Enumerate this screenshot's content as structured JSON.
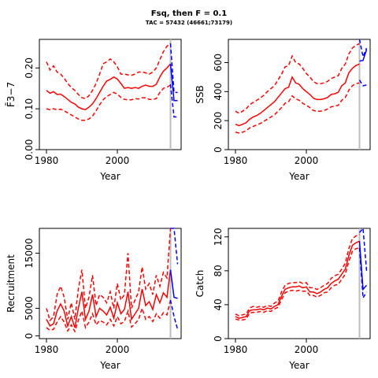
{
  "figure": {
    "title": "Fsq, then F = 0.1",
    "subtitle": "TAC = 57432 (46661;73179)"
  },
  "colors": {
    "history": "#ff0000",
    "projection": "#0000ff",
    "divider": "#bebebe",
    "axis": "#000000"
  },
  "chart_data": [
    {
      "type": "line",
      "panel": "F",
      "xlabel": "Year",
      "ylabel": "F̄3−7",
      "xlim": [
        1978,
        2018
      ],
      "ylim": [
        0.0,
        0.27
      ],
      "xticks": [
        1980,
        2000
      ],
      "yticks": [
        0.0,
        0.1,
        0.2
      ],
      "ytick_labels": [
        "0.00",
        "0.10",
        "0.20"
      ],
      "divider_year": 2015,
      "history": {
        "x": [
          1980,
          1981,
          1982,
          1983,
          1984,
          1985,
          1986,
          1987,
          1988,
          1989,
          1990,
          1991,
          1992,
          1993,
          1994,
          1995,
          1996,
          1997,
          1998,
          1999,
          2000,
          2001,
          2002,
          2003,
          2004,
          2005,
          2006,
          2007,
          2008,
          2009,
          2010,
          2011,
          2012,
          2013,
          2014,
          2015
        ],
        "median": [
          0.145,
          0.138,
          0.142,
          0.135,
          0.136,
          0.13,
          0.123,
          0.116,
          0.112,
          0.104,
          0.1,
          0.098,
          0.104,
          0.112,
          0.125,
          0.14,
          0.155,
          0.168,
          0.172,
          0.178,
          0.173,
          0.162,
          0.15,
          0.152,
          0.15,
          0.152,
          0.15,
          0.155,
          0.158,
          0.155,
          0.155,
          0.16,
          0.178,
          0.192,
          0.2,
          0.21
        ],
        "upper": [
          0.215,
          0.195,
          0.205,
          0.19,
          0.185,
          0.175,
          0.162,
          0.152,
          0.145,
          0.135,
          0.127,
          0.125,
          0.132,
          0.145,
          0.162,
          0.185,
          0.21,
          0.215,
          0.222,
          0.215,
          0.203,
          0.185,
          0.185,
          0.183,
          0.182,
          0.185,
          0.19,
          0.19,
          0.188,
          0.185,
          0.19,
          0.2,
          0.22,
          0.24,
          0.253,
          0.26
        ],
        "lower": [
          0.1,
          0.098,
          0.1,
          0.098,
          0.099,
          0.095,
          0.09,
          0.085,
          0.08,
          0.075,
          0.072,
          0.072,
          0.075,
          0.082,
          0.095,
          0.11,
          0.122,
          0.13,
          0.135,
          0.14,
          0.136,
          0.128,
          0.123,
          0.122,
          0.122,
          0.125,
          0.124,
          0.127,
          0.127,
          0.123,
          0.123,
          0.125,
          0.14,
          0.15,
          0.153,
          0.158
        ]
      },
      "projection": {
        "x": [
          2015,
          2016,
          2017
        ],
        "median": [
          0.21,
          0.12,
          0.12
        ],
        "upper": [
          0.26,
          0.14,
          0.14
        ],
        "lower": [
          0.16,
          0.08,
          0.08
        ]
      }
    },
    {
      "type": "line",
      "panel": "SSB",
      "xlabel": "Year",
      "ylabel": "SSB",
      "xlim": [
        1978,
        2018
      ],
      "ylim": [
        0,
        760
      ],
      "xticks": [
        1980,
        2000
      ],
      "yticks": [
        0,
        200,
        400,
        600
      ],
      "ytick_labels": [
        "0",
        "200",
        "400",
        "600"
      ],
      "divider_year": 2015,
      "history": {
        "x": [
          1980,
          1981,
          1982,
          1983,
          1984,
          1985,
          1986,
          1987,
          1988,
          1989,
          1990,
          1991,
          1992,
          1993,
          1994,
          1995,
          1996,
          1997,
          1998,
          1999,
          2000,
          2001,
          2002,
          2003,
          2004,
          2005,
          2006,
          2007,
          2008,
          2009,
          2010,
          2011,
          2012,
          2013,
          2014,
          2015
        ],
        "median": [
          175,
          165,
          175,
          185,
          210,
          225,
          235,
          250,
          270,
          290,
          310,
          330,
          360,
          390,
          420,
          430,
          500,
          460,
          450,
          420,
          400,
          380,
          355,
          345,
          345,
          350,
          360,
          380,
          385,
          395,
          440,
          460,
          530,
          560,
          580,
          590
        ],
        "upper": [
          265,
          250,
          265,
          280,
          310,
          325,
          340,
          355,
          375,
          400,
          420,
          440,
          480,
          520,
          570,
          580,
          645,
          600,
          590,
          560,
          525,
          500,
          470,
          455,
          455,
          460,
          470,
          490,
          500,
          510,
          560,
          590,
          660,
          700,
          720,
          730
        ],
        "lower": [
          120,
          115,
          120,
          130,
          150,
          160,
          170,
          180,
          195,
          210,
          225,
          240,
          265,
          290,
          320,
          330,
          370,
          350,
          340,
          320,
          305,
          290,
          270,
          265,
          265,
          270,
          280,
          295,
          300,
          305,
          340,
          360,
          410,
          440,
          455,
          460
        ]
      },
      "projection": {
        "x": [
          2015,
          2016,
          2017
        ],
        "median": [
          610,
          615,
          690
        ],
        "upper": [
          760,
          640,
          700
        ],
        "lower": [
          480,
          440,
          445
        ]
      }
    },
    {
      "type": "line",
      "panel": "Recruitment",
      "xlabel": "Year",
      "ylabel": "Recruitment",
      "xlim": [
        1978,
        2018
      ],
      "ylim": [
        -500,
        19500
      ],
      "xticks": [
        1980,
        2000
      ],
      "yticks": [
        0,
        5000,
        15000
      ],
      "ytick_labels": [
        "0",
        "5000",
        "15000"
      ],
      "divider_year": 2015,
      "history": {
        "x": [
          1980,
          1981,
          1982,
          1983,
          1984,
          1985,
          1986,
          1987,
          1988,
          1989,
          1990,
          1991,
          1992,
          1993,
          1994,
          1995,
          1996,
          1997,
          1998,
          1999,
          2000,
          2001,
          2002,
          2003,
          2004,
          2005,
          2006,
          2007,
          2008,
          2009,
          2010,
          2011,
          2012,
          2013,
          2014,
          2015
        ],
        "median": [
          3000,
          1800,
          2200,
          4500,
          5800,
          4500,
          1800,
          3500,
          1500,
          5000,
          8000,
          3000,
          4500,
          7500,
          3500,
          5000,
          4500,
          3800,
          5200,
          3200,
          6000,
          4000,
          4800,
          8000,
          3000,
          4000,
          5000,
          8500,
          5500,
          6200,
          4800,
          7500,
          6000,
          7800,
          7000,
          12000
        ],
        "upper": [
          5000,
          2800,
          3500,
          7500,
          9000,
          7000,
          3000,
          6000,
          3000,
          8500,
          12000,
          5000,
          7000,
          11000,
          5500,
          7500,
          7000,
          6000,
          8000,
          5000,
          9500,
          6500,
          7500,
          15000,
          5000,
          6500,
          8000,
          12500,
          8500,
          9500,
          7500,
          11000,
          9000,
          11500,
          10500,
          19500
        ],
        "lower": [
          1500,
          1000,
          1200,
          2500,
          3500,
          2500,
          900,
          2000,
          800,
          2800,
          4500,
          1500,
          2500,
          4000,
          2000,
          2800,
          2500,
          2000,
          3000,
          1800,
          3500,
          2200,
          2600,
          4500,
          1600,
          2200,
          3000,
          5000,
          3000,
          3500,
          2600,
          4000,
          3200,
          4200,
          3800,
          6500
        ]
      },
      "projection": {
        "x": [
          2015,
          2016,
          2017
        ],
        "median": [
          12000,
          7000,
          6800
        ],
        "upper": [
          19500,
          19500,
          13000
        ],
        "lower": [
          6500,
          3500,
          1200
        ]
      }
    },
    {
      "type": "line",
      "panel": "Catch",
      "xlabel": "Year",
      "ylabel": "Catch",
      "xlim": [
        1978,
        2018
      ],
      "ylim": [
        0,
        130
      ],
      "xticks": [
        1980,
        2000
      ],
      "yticks": [
        0,
        40,
        80,
        120
      ],
      "ytick_labels": [
        "0",
        "40",
        "80",
        "120"
      ],
      "divider_year": 2015,
      "history": {
        "x": [
          1980,
          1981,
          1982,
          1983,
          1984,
          1985,
          1986,
          1987,
          1988,
          1989,
          1990,
          1991,
          1992,
          1993,
          1994,
          1995,
          1996,
          1997,
          1998,
          1999,
          2000,
          2001,
          2002,
          2003,
          2004,
          2005,
          2006,
          2007,
          2008,
          2009,
          2010,
          2011,
          2012,
          2013,
          2014,
          2015
        ],
        "median": [
          26,
          24,
          25,
          26,
          33,
          34,
          34,
          35,
          34,
          36,
          35,
          38,
          40,
          50,
          58,
          60,
          61,
          61,
          62,
          60,
          61,
          55,
          55,
          53,
          55,
          58,
          60,
          65,
          68,
          70,
          76,
          82,
          98,
          110,
          113,
          115
        ],
        "upper": [
          29,
          27,
          28,
          29,
          36,
          38,
          37,
          38,
          37,
          39,
          38,
          42,
          44,
          55,
          63,
          65,
          66,
          66,
          67,
          65,
          66,
          60,
          60,
          58,
          60,
          63,
          65,
          71,
          74,
          76,
          82,
          89,
          106,
          118,
          121,
          123
        ],
        "lower": [
          23,
          22,
          22,
          23,
          30,
          31,
          31,
          32,
          31,
          33,
          32,
          35,
          37,
          46,
          54,
          56,
          57,
          56,
          57,
          56,
          56,
          51,
          51,
          49,
          51,
          54,
          55,
          60,
          63,
          64,
          70,
          76,
          91,
          103,
          106,
          107
        ]
      },
      "projection": {
        "x": [
          2015,
          2016,
          2017
        ],
        "median": [
          115,
          58,
          63
        ],
        "upper": [
          125,
          130,
          80
        ],
        "lower": [
          107,
          48,
          55
        ]
      }
    }
  ]
}
